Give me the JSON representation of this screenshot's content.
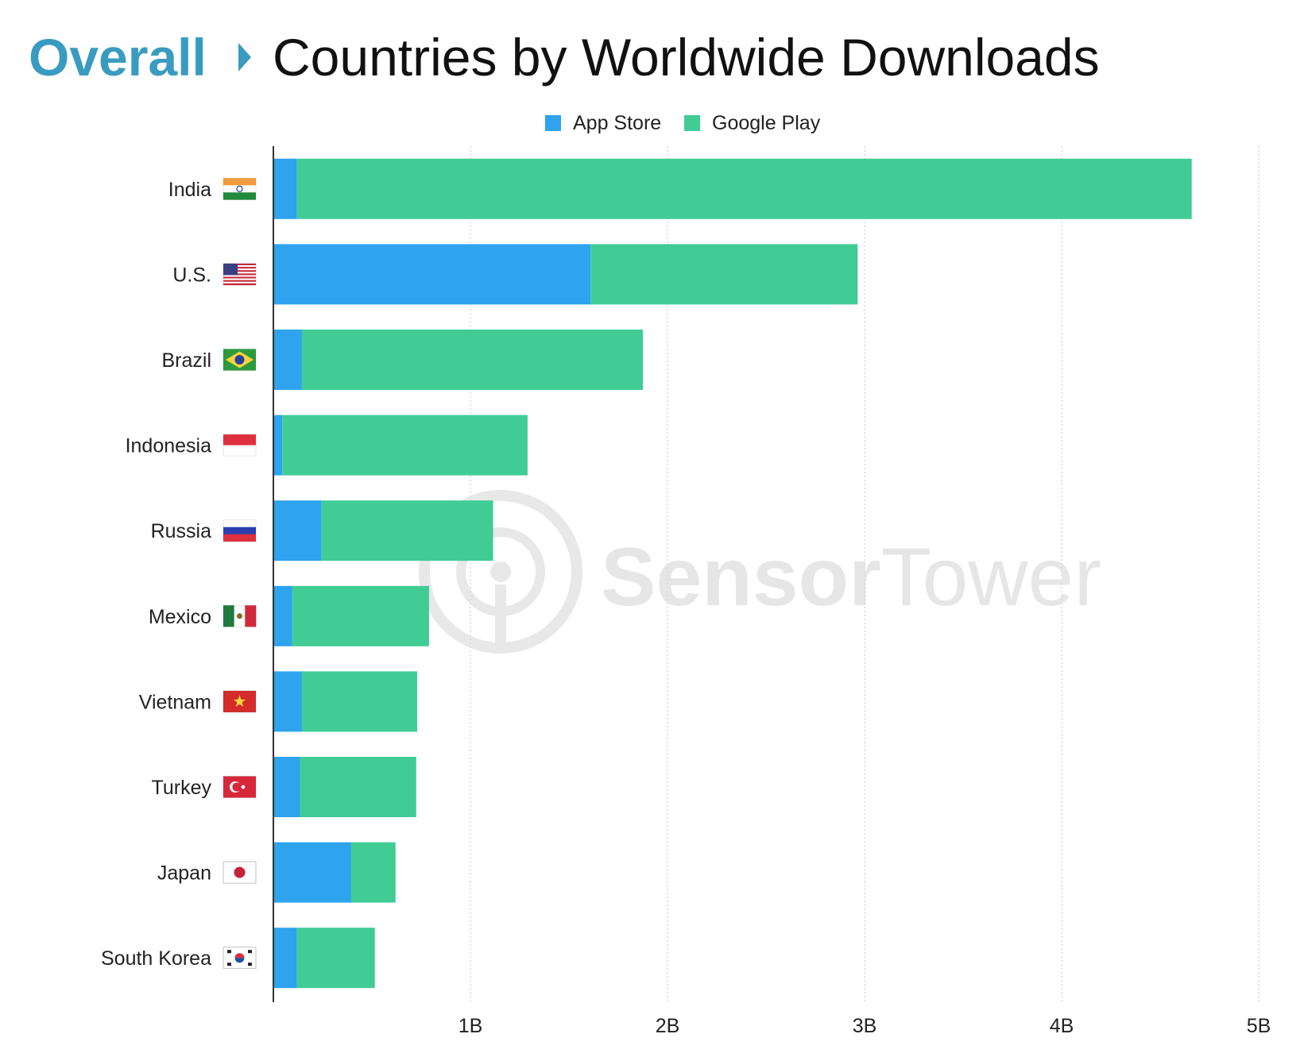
{
  "header": {
    "breadcrumb_root": "Overall",
    "breadcrumb_separator_icon": "caret-right-icon",
    "title": "Countries by Worldwide Downloads"
  },
  "watermark": {
    "brand_bold": "Sensor",
    "brand_light": "Tower",
    "logo_icon": "sensor-tower-logo-icon"
  },
  "colors": {
    "breadcrumb": "#3a9bc0",
    "title": "#111111",
    "app_store": "#2ea3ee",
    "google_play": "#41cc96",
    "axis": "#333333",
    "grid": "#d9d9d9",
    "watermark": "#e8e8e8"
  },
  "chart_data": {
    "type": "bar",
    "orientation": "horizontal",
    "stacked": true,
    "title": "Countries by Worldwide Downloads",
    "xlabel": "",
    "ylabel": "",
    "xlim": [
      0,
      5000000000
    ],
    "x_ticks": [
      {
        "value": 1000000000,
        "label": "1B"
      },
      {
        "value": 2000000000,
        "label": "2B"
      },
      {
        "value": 3000000000,
        "label": "3B"
      },
      {
        "value": 4000000000,
        "label": "4B"
      },
      {
        "value": 5000000000,
        "label": "5B"
      }
    ],
    "grid": "vertical dotted",
    "legend": "top-center",
    "categories": [
      "India",
      "U.S.",
      "Brazil",
      "Indonesia",
      "Russia",
      "Mexico",
      "Vietnam",
      "Turkey",
      "Japan",
      "South Korea"
    ],
    "flags": [
      "india-flag-icon",
      "us-flag-icon",
      "brazil-flag-icon",
      "indonesia-flag-icon",
      "russia-flag-icon",
      "mexico-flag-icon",
      "vietnam-flag-icon",
      "turkey-flag-icon",
      "japan-flag-icon",
      "south-korea-flag-icon"
    ],
    "series": [
      {
        "name": "App Store",
        "values": [
          120000000,
          1610000000,
          145000000,
          45000000,
          245000000,
          95000000,
          145000000,
          135000000,
          395000000,
          120000000
        ]
      },
      {
        "name": "Google Play",
        "values": [
          4540000000,
          1355000000,
          1730000000,
          1245000000,
          870000000,
          695000000,
          585000000,
          590000000,
          225000000,
          395000000
        ]
      }
    ]
  }
}
